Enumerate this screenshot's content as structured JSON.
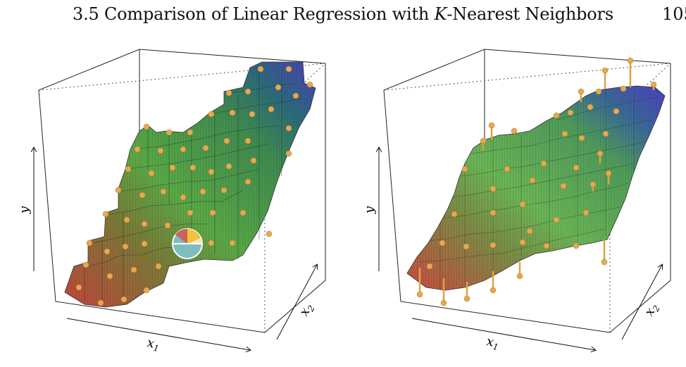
{
  "header": {
    "section_number": "3.5",
    "title_pre": "Comparison of Linear Regression with ",
    "title_var": "K",
    "title_post": "-Nearest Neighbors",
    "page_number": "105"
  },
  "figure": {
    "left_plot": {
      "axis_y": "y",
      "axis_x1": "x",
      "axis_x1_sub": "1",
      "axis_x2": "x",
      "axis_x2_sub": "2"
    },
    "right_plot": {
      "axis_y": "y",
      "axis_x1": "x",
      "axis_x1_sub": "1",
      "axis_x2": "x",
      "axis_x2_sub": "2"
    },
    "colors": {
      "low": "#c0453a",
      "mid": "#5aa845",
      "high": "#4a40b8",
      "points": "#e8a850"
    }
  }
}
